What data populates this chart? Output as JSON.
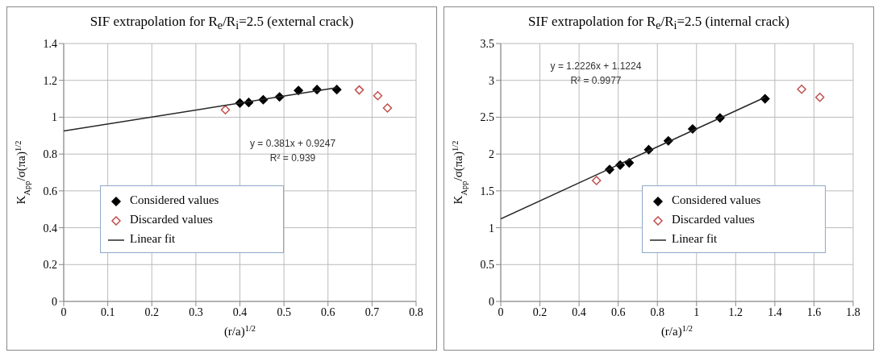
{
  "chart_data": [
    {
      "type": "scatter",
      "title": "SIF extrapolation  for R$_{e}$/R$_{i}$=2.5  (external crack)",
      "xlabel": "(r/a)$^{1/2}$",
      "ylabel": "K$_{App}$/σ(πa)$^{1/2}$",
      "xlim": [
        0,
        0.8
      ],
      "xticks": [
        0,
        0.1,
        0.2,
        0.3,
        0.4,
        0.5,
        0.6,
        0.7,
        0.8
      ],
      "ylim": [
        0,
        1.4
      ],
      "yticks": [
        0,
        0.2,
        0.4,
        0.6,
        0.8,
        1,
        1.2,
        1.4
      ],
      "grid": true,
      "legend": "bottom left",
      "marker": "diamond",
      "series": [
        {
          "name": "Considered values",
          "color": "#000000",
          "x": [
            0.4,
            0.42,
            0.453,
            0.49,
            0.533,
            0.575,
            0.62
          ],
          "values": [
            1.077,
            1.08,
            1.095,
            1.11,
            1.145,
            1.15,
            1.15
          ]
        },
        {
          "name": "Discarded values",
          "color": "#c0504d",
          "x": [
            0.367,
            0.671,
            0.713,
            0.735
          ],
          "values": [
            1.04,
            1.148,
            1.117,
            1.05
          ]
        },
        {
          "name": "Linear fit",
          "type": "line",
          "color": "#262626",
          "marker": "none",
          "x": [
            0,
            0.62
          ],
          "values": [
            0.925,
            1.16
          ]
        }
      ],
      "annotations": [
        "y = 0.381x + 0.9247",
        "R² = 0.939"
      ]
    },
    {
      "type": "scatter",
      "title": "SIF extrapolation  for R$_{e}$/R$_{i}$=2.5  (internal crack)",
      "xlabel": "(r/a)$^{1/2}$",
      "ylabel": "K$_{App}$/σ(πa)$^{1/2}$",
      "xlim": [
        0,
        1.8
      ],
      "xticks": [
        0,
        0.2,
        0.4,
        0.6,
        0.8,
        1,
        1.2,
        1.4,
        1.6,
        1.8
      ],
      "ylim": [
        0,
        3.5
      ],
      "yticks": [
        0,
        0.5,
        1,
        1.5,
        2,
        2.5,
        3,
        3.5
      ],
      "grid": true,
      "legend": "bottom right",
      "marker": "diamond",
      "series": [
        {
          "name": "Considered values",
          "color": "#000000",
          "x": [
            0.556,
            0.61,
            0.656,
            0.756,
            0.856,
            0.98,
            1.12,
            1.35
          ],
          "values": [
            1.79,
            1.85,
            1.88,
            2.06,
            2.18,
            2.34,
            2.49,
            2.75
          ]
        },
        {
          "name": "Discarded values",
          "color": "#c0504d",
          "x": [
            0.489,
            1.537,
            1.63
          ],
          "values": [
            1.64,
            2.88,
            2.77
          ]
        },
        {
          "name": "Linear fit",
          "type": "line",
          "color": "#262626",
          "marker": "none",
          "x": [
            0,
            1.35
          ],
          "values": [
            1.12,
            2.77
          ]
        }
      ],
      "annotations": [
        "y = 1.2226x + 1.1224",
        "R² = 0.9977"
      ]
    }
  ]
}
